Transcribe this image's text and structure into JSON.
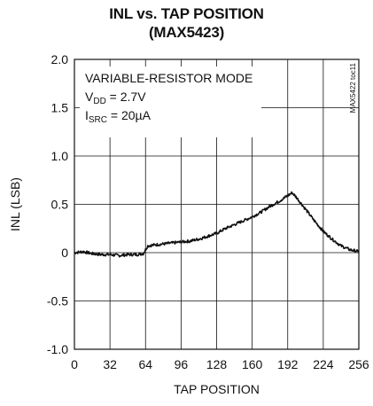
{
  "chart_data": {
    "type": "line",
    "title": "INL vs. TAP POSITION",
    "subtitle": "(MAX5423)",
    "xlabel": "TAP POSITION",
    "ylabel": "INL (LSB)",
    "xlim": [
      0,
      256
    ],
    "ylim": [
      -1.0,
      2.0
    ],
    "x_ticks": [
      "0",
      "32",
      "64",
      "96",
      "128",
      "160",
      "192",
      "224",
      "256"
    ],
    "y_ticks": [
      "2.0",
      "1.5",
      "1.0",
      "0.5",
      "0",
      "-0.5",
      "-1.0"
    ],
    "grid": true,
    "annotations": {
      "mode": "VARIABLE-RESISTOR MODE",
      "vdd_main": "V",
      "vdd_sub": "DD",
      "vdd_value": " = 2.7V",
      "isrc_main": "I",
      "isrc_sub": "SRC",
      "isrc_value": " = 20µA"
    },
    "watermark": "MAX5422 toc11",
    "series": [
      {
        "x": [
          0,
          8,
          16,
          24,
          32,
          40,
          48,
          56,
          62,
          64,
          66,
          72,
          80,
          88,
          96,
          104,
          112,
          120,
          128,
          136,
          144,
          152,
          160,
          168,
          176,
          184,
          192,
          196,
          200,
          208,
          216,
          224,
          232,
          240,
          248,
          256
        ],
        "y": [
          0.0,
          0.01,
          -0.01,
          -0.02,
          -0.02,
          -0.03,
          -0.02,
          -0.02,
          -0.01,
          0.03,
          0.07,
          0.08,
          0.09,
          0.1,
          0.11,
          0.12,
          0.14,
          0.17,
          0.2,
          0.25,
          0.29,
          0.33,
          0.37,
          0.42,
          0.48,
          0.53,
          0.59,
          0.62,
          0.57,
          0.45,
          0.33,
          0.22,
          0.14,
          0.07,
          0.03,
          0.01
        ]
      }
    ]
  }
}
